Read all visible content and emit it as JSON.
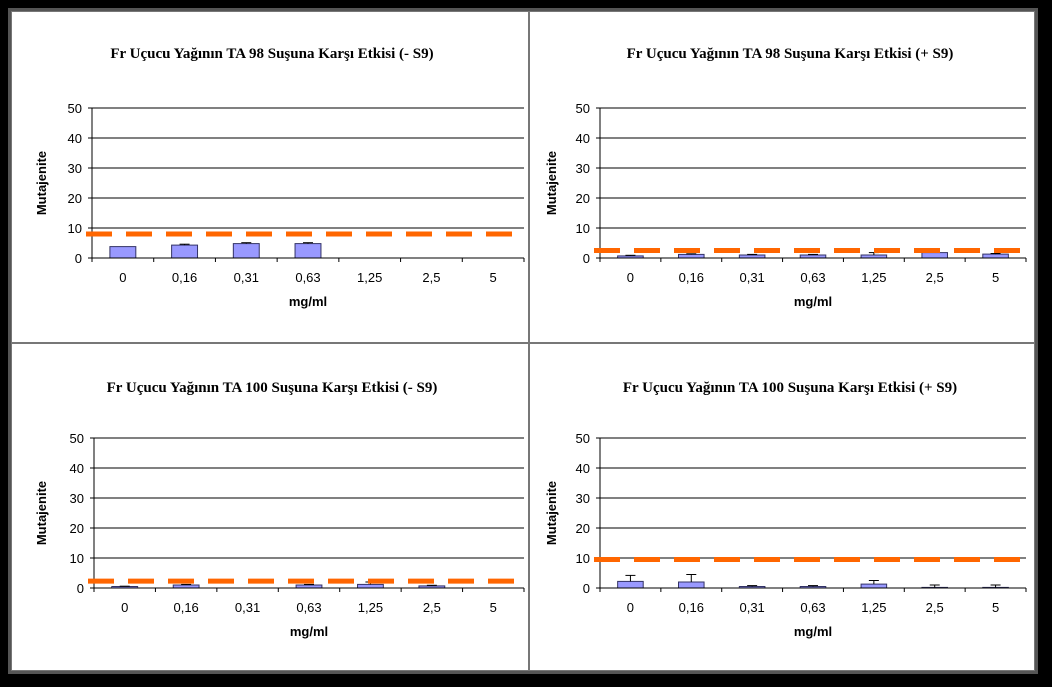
{
  "colors": {
    "bar": "#9999ff",
    "bar_stroke": "#333366",
    "threshold": "#ff6600",
    "grid": "#000000"
  },
  "chart_data": [
    {
      "type": "bar",
      "title": "Fr Uçucu Yağının TA 98 Suşuna Karşı Etkisi (- S9)",
      "xlabel": "mg/ml",
      "ylabel": "Mutajenite",
      "ylim": [
        0,
        50
      ],
      "yticks": [
        "0",
        "10",
        "20",
        "30",
        "40",
        "50"
      ],
      "categories": [
        "0",
        "0,16",
        "0,31",
        "0,63",
        "1,25",
        "2,5",
        "5"
      ],
      "values": [
        3.8,
        4.3,
        4.8,
        4.8,
        null,
        null,
        null
      ],
      "errors": [
        0,
        0.3,
        0.3,
        0.3,
        null,
        null,
        null
      ],
      "threshold": 8,
      "grid": true
    },
    {
      "type": "bar",
      "title": "Fr Uçucu Yağının TA 98 Suşuna Karşı Etkisi (+ S9)",
      "xlabel": "mg/ml",
      "ylabel": "Mutajenite",
      "ylim": [
        0,
        50
      ],
      "yticks": [
        "0",
        "10",
        "20",
        "30",
        "40",
        "50"
      ],
      "categories": [
        "0",
        "0,16",
        "0,31",
        "0,63",
        "1,25",
        "2,5",
        "5"
      ],
      "values": [
        0.7,
        1.2,
        1.0,
        1.0,
        1.0,
        1.8,
        1.3
      ],
      "errors": [
        0.2,
        0.2,
        0.2,
        0.2,
        0.8,
        1.0,
        0.2
      ],
      "threshold": 2.5,
      "grid": true
    },
    {
      "type": "bar",
      "title": "Fr Uçucu Yağının TA 100 Suşuna Karşı Etkisi (- S9)",
      "xlabel": "mg/ml",
      "ylabel": "Mutajenite",
      "ylim": [
        0,
        50
      ],
      "yticks": [
        "0",
        "10",
        "20",
        "30",
        "40",
        "50"
      ],
      "categories": [
        "0",
        "0,16",
        "0,31",
        "0,63",
        "1,25",
        "2,5",
        "5"
      ],
      "values": [
        0.5,
        1.0,
        null,
        1.0,
        1.2,
        0.7,
        null
      ],
      "errors": [
        0.1,
        0.2,
        null,
        0.2,
        0.8,
        0.2,
        null
      ],
      "threshold": 2.3,
      "grid": true
    },
    {
      "type": "bar",
      "title": "Fr Uçucu Yağının TA 100 Suşuna Karşı Etkisi (+ S9)",
      "xlabel": "mg/ml",
      "ylabel": "Mutajenite",
      "ylim": [
        0,
        50
      ],
      "yticks": [
        "0",
        "10",
        "20",
        "30",
        "40",
        "50"
      ],
      "categories": [
        "0",
        "0,16",
        "0,31",
        "0,63",
        "1,25",
        "2,5",
        "5"
      ],
      "values": [
        2.2,
        2.0,
        0.5,
        0.5,
        1.3,
        0.2,
        0.2
      ],
      "errors": [
        2.0,
        2.5,
        0.3,
        0.3,
        1.2,
        0.8,
        0.8
      ],
      "threshold": 9.5,
      "grid": true
    }
  ]
}
